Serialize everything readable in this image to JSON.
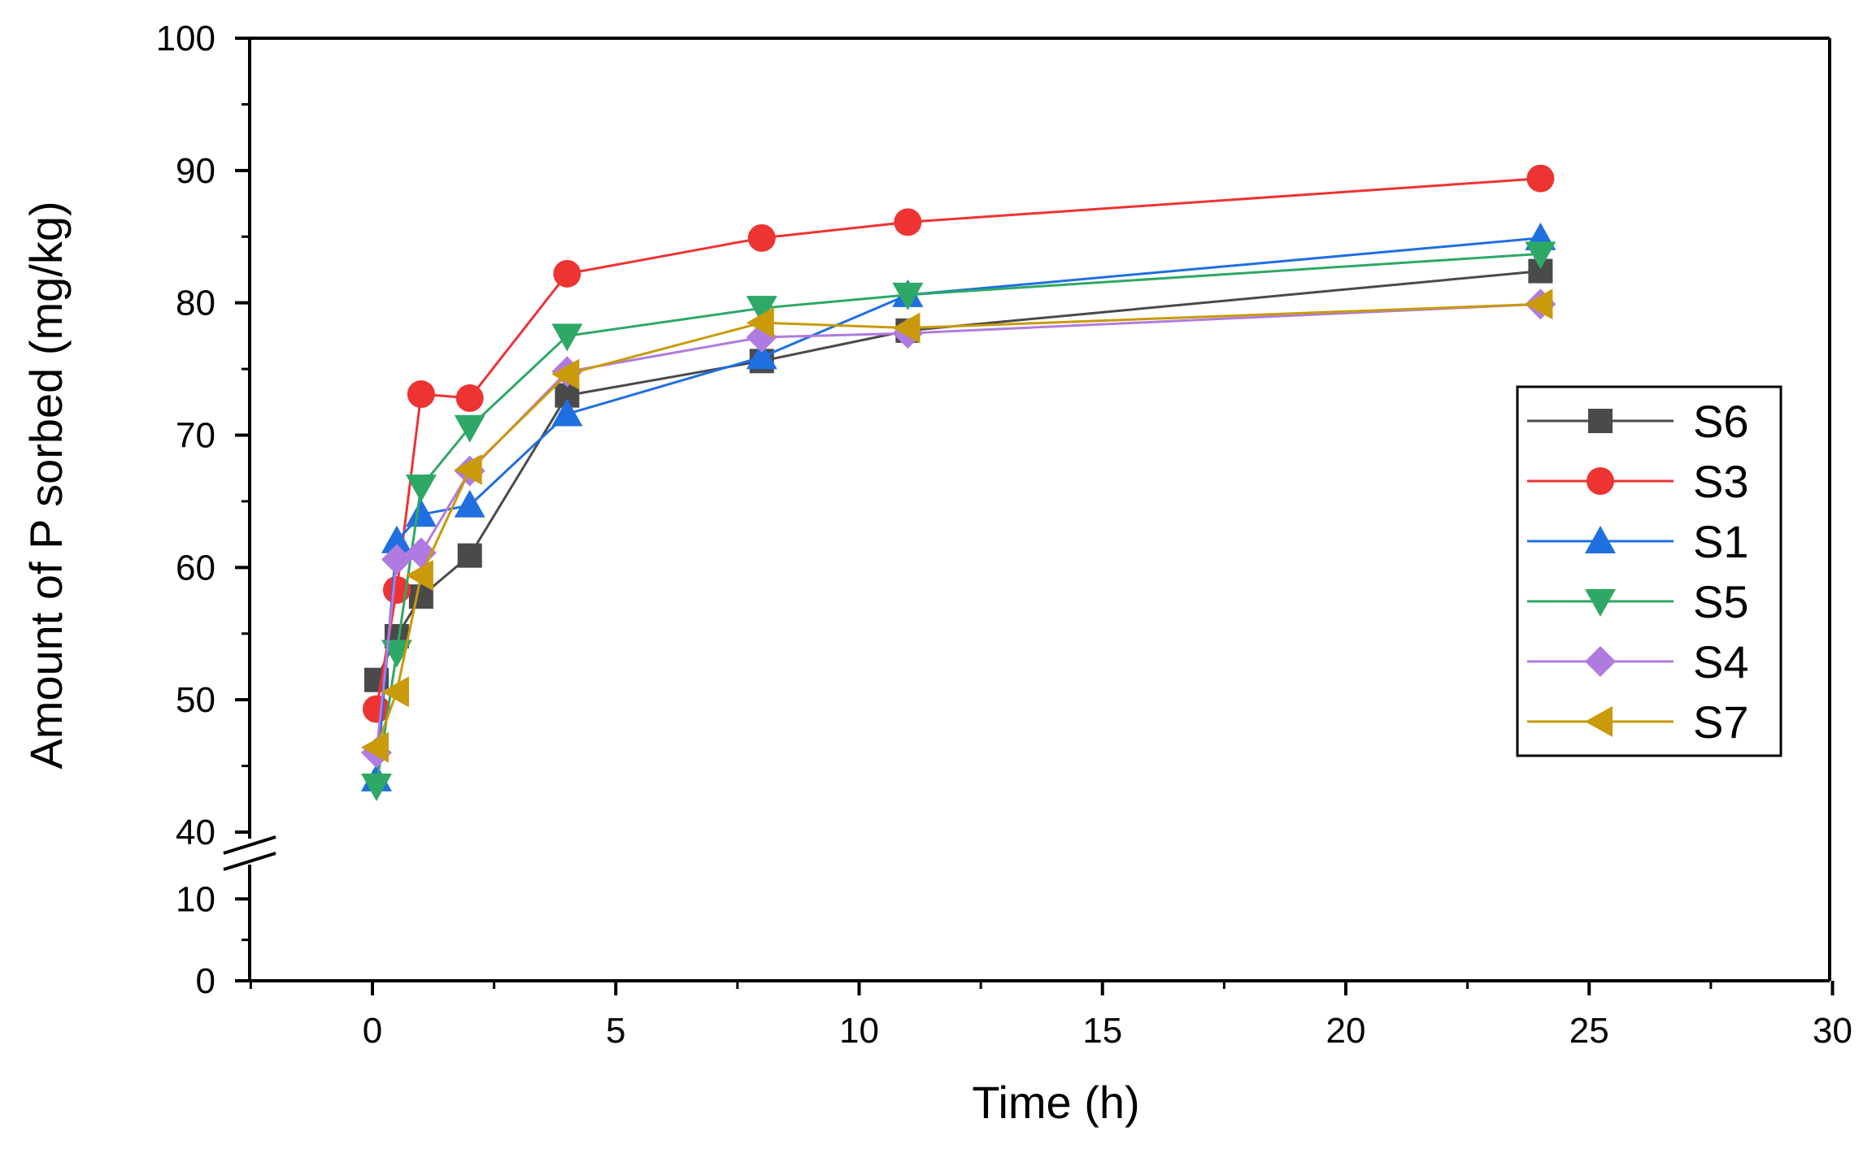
{
  "chart_data": {
    "type": "line",
    "title": "",
    "xlabel": "Time (h)",
    "ylabel": "Amount of P sorbed (mg/kg)",
    "xlim": [
      -2.5,
      30
    ],
    "x_ticks": [
      0,
      5,
      10,
      15,
      20,
      25,
      30
    ],
    "y_ticks_lower": [
      0,
      10
    ],
    "y_ticks_upper": [
      40,
      50,
      60,
      70,
      80,
      90,
      100
    ],
    "ylim_lower": [
      0,
      14
    ],
    "ylim_upper": [
      40,
      100
    ],
    "axis_break": "between 14 and 40 on the y-axis",
    "grid": false,
    "legend_position": "right",
    "x": [
      0.083,
      0.5,
      1,
      2,
      4,
      8,
      11,
      24
    ],
    "series": [
      {
        "name": "S6",
        "color": "#4a4a4a",
        "marker": "square",
        "values": [
          51.5,
          54.8,
          57.8,
          60.9,
          73.0,
          75.6,
          77.9,
          82.4
        ]
      },
      {
        "name": "S3",
        "color": "#ee3333",
        "marker": "circle",
        "values": [
          49.3,
          58.3,
          73.1,
          72.8,
          82.2,
          84.9,
          86.1,
          89.4
        ]
      },
      {
        "name": "S1",
        "color": "#1f6fe0",
        "marker": "triangle-up",
        "values": [
          44.0,
          62.0,
          64.0,
          64.7,
          71.6,
          75.9,
          80.6,
          84.9
        ]
      },
      {
        "name": "S5",
        "color": "#2ea866",
        "marker": "triangle-down",
        "values": [
          43.5,
          53.6,
          66.1,
          70.6,
          77.5,
          79.6,
          80.6,
          83.7
        ]
      },
      {
        "name": "S4",
        "color": "#b07be0",
        "marker": "diamond",
        "values": [
          46.0,
          60.6,
          61.1,
          67.3,
          74.8,
          77.4,
          77.7,
          79.9
        ]
      },
      {
        "name": "S7",
        "color": "#c99a0a",
        "marker": "triangle-left",
        "values": [
          46.4,
          50.6,
          59.4,
          67.4,
          74.6,
          78.5,
          78.1,
          79.9
        ]
      }
    ]
  }
}
